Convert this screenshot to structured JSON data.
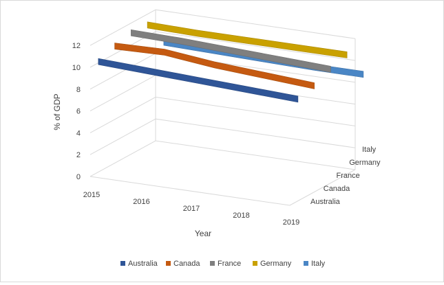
{
  "chart_data": {
    "type": "line",
    "subtype": "3d-line",
    "title": "",
    "xlabel": "Year",
    "ylabel": "% of GDP",
    "categories": [
      "2015",
      "2016",
      "2017",
      "2018",
      "2019"
    ],
    "ylim": [
      0,
      12
    ],
    "yticks": [
      "0",
      "2",
      "4",
      "6",
      "8",
      "10",
      "12"
    ],
    "depth_labels": [
      "Australia",
      "Canada",
      "France",
      "Germany",
      "Italy"
    ],
    "grid": true,
    "legend_position": "bottom",
    "series": [
      {
        "name": "Australia",
        "color": "#2f5597",
        "values": [
          10.4,
          10.2,
          10.0,
          9.8,
          9.6
        ]
      },
      {
        "name": "Canada",
        "color": "#c55a11",
        "values": [
          11.0,
          11.1,
          10.6,
          10.3,
          10.0
        ]
      },
      {
        "name": "France",
        "color": "#7f7f7f",
        "values": [
          11.4,
          11.3,
          11.1,
          10.9,
          10.7
        ]
      },
      {
        "name": "Germany",
        "color": "#c9a100",
        "values": [
          11.3,
          11.2,
          11.2,
          11.2,
          11.2
        ]
      },
      {
        "name": "Italy",
        "color": "#4a86c5",
        "values": [
          8.9,
          8.8,
          8.7,
          8.6,
          8.6
        ]
      }
    ]
  }
}
